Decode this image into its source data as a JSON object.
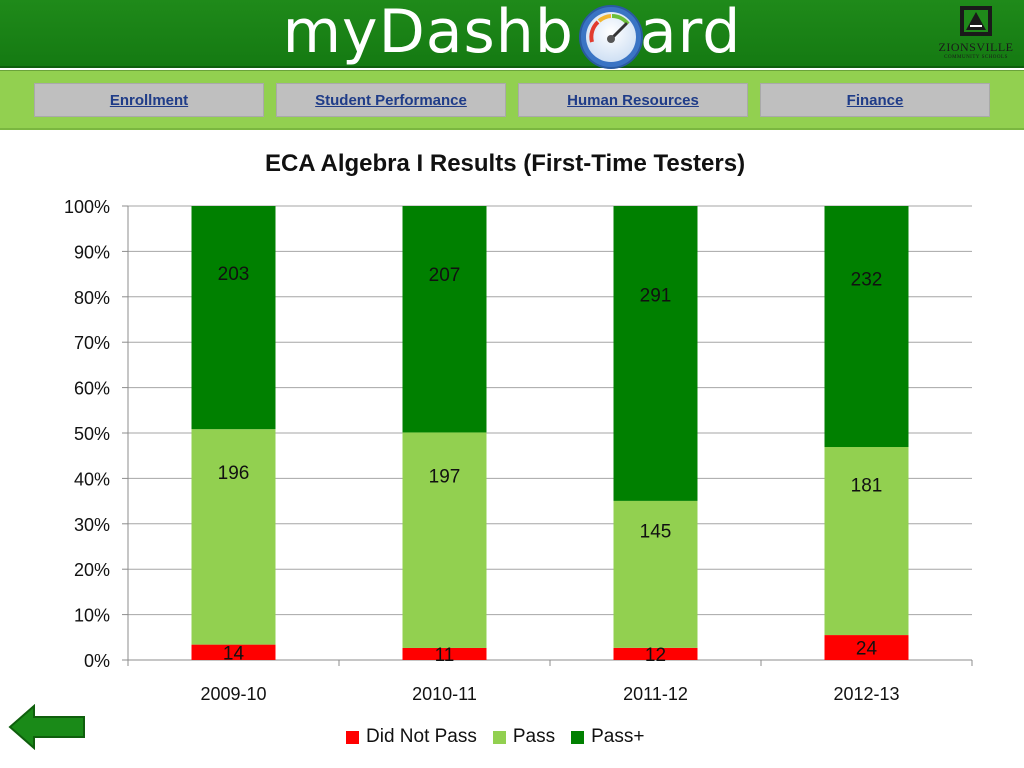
{
  "header": {
    "logo_before": "myDashb",
    "logo_after": "ard",
    "school_name": "ZIONSVILLE",
    "school_sub": "COMMUNITY SCHOOLS"
  },
  "nav": {
    "items": [
      {
        "label": "Enrollment"
      },
      {
        "label": "Student Performance"
      },
      {
        "label": "Human Resources"
      },
      {
        "label": "Finance"
      }
    ]
  },
  "colors": {
    "header_green": "#1f8a1a",
    "nav_green": "#92d050",
    "did_not_pass": "#ff0000",
    "pass": "#92d050",
    "pass_plus": "#008000"
  },
  "chart_data": {
    "type": "bar",
    "stacked": "percent",
    "title": "ECA Algebra I Results (First-Time Testers)",
    "categories": [
      "2009-10",
      "2010-11",
      "2011-12",
      "2012-13"
    ],
    "series": [
      {
        "name": "Did Not Pass",
        "color": "#ff0000",
        "values": [
          14,
          11,
          12,
          24
        ]
      },
      {
        "name": "Pass",
        "color": "#92d050",
        "values": [
          196,
          197,
          145,
          181
        ]
      },
      {
        "name": "Pass+",
        "color": "#008000",
        "values": [
          203,
          207,
          291,
          232
        ]
      }
    ],
    "y_ticks": [
      "0%",
      "10%",
      "20%",
      "30%",
      "40%",
      "50%",
      "60%",
      "70%",
      "80%",
      "90%",
      "100%"
    ],
    "ylim": [
      0,
      100
    ],
    "grid": true,
    "legend_position": "bottom"
  },
  "icons": {
    "back": "back-arrow-icon",
    "dial": "gauge-icon"
  }
}
